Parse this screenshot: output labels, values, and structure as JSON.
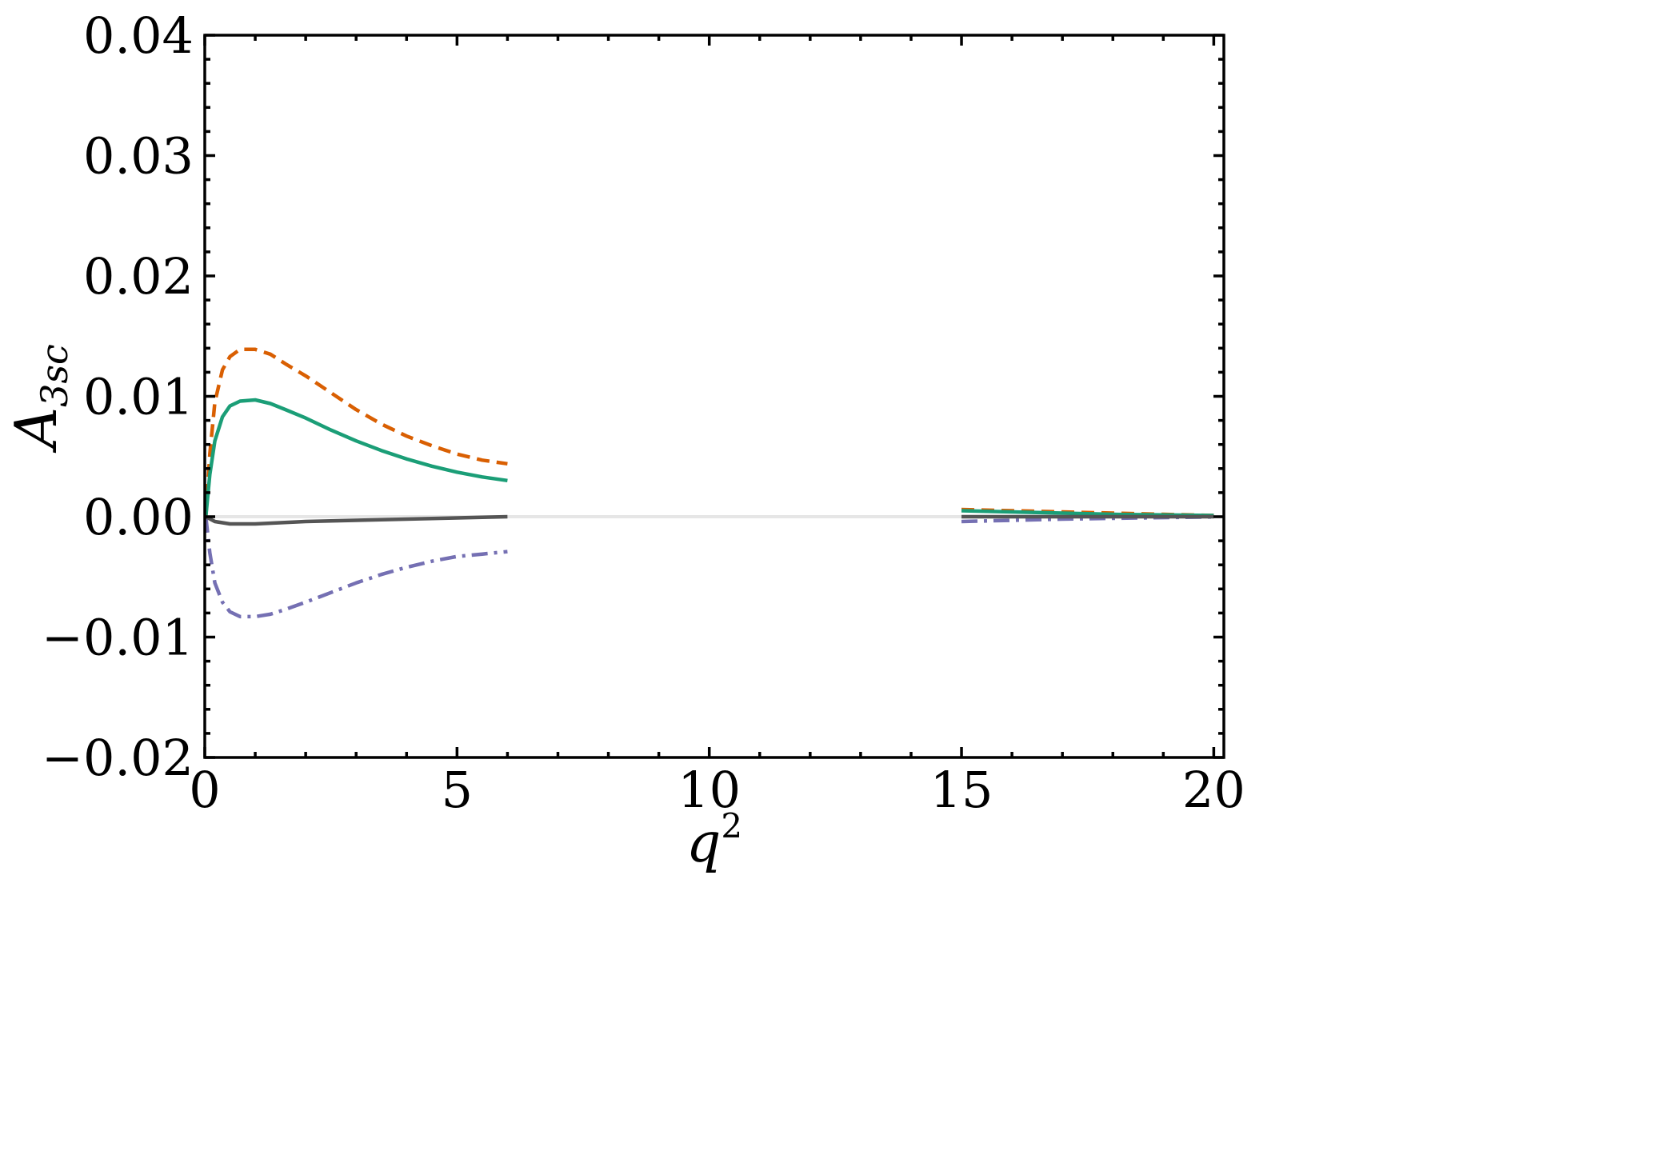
{
  "chart_data": {
    "type": "line",
    "xlabel_base": "q",
    "xlabel_sup": "2",
    "ylabel_base": "A",
    "ylabel_sub": "3sc",
    "xlim": [
      0,
      20.2
    ],
    "ylim": [
      -0.02,
      0.04
    ],
    "x_ticks": [
      0,
      5,
      10,
      15,
      20
    ],
    "x_tick_labels": [
      "0",
      "5",
      "10",
      "15",
      "20"
    ],
    "y_ticks": [
      -0.02,
      -0.01,
      0.0,
      0.01,
      0.02,
      0.03,
      0.04
    ],
    "y_tick_labels": [
      "−0.02",
      "−0.01",
      "0.00",
      "0.01",
      "0.02",
      "0.03",
      "0.04"
    ],
    "x_minor_step": 1,
    "y_minor_step": 0.002,
    "grid": false,
    "legend": "none",
    "baseline": {
      "x": [
        0,
        20.2
      ],
      "y": 0,
      "color": "#e6e6e6"
    },
    "series": [
      {
        "color": "#d95f02",
        "style": "dashed",
        "segments": [
          {
            "x": [
              0.02,
              0.1,
              0.2,
              0.35,
              0.5,
              0.7,
              1.0,
              1.3,
              1.6,
              2.0,
              2.5,
              3.0,
              3.5,
              4.0,
              4.5,
              5.0,
              5.5,
              6.0
            ],
            "y": [
              0.0,
              0.0052,
              0.0095,
              0.0122,
              0.0133,
              0.0139,
              0.0139,
              0.0135,
              0.0127,
              0.0117,
              0.0103,
              0.0089,
              0.0077,
              0.0067,
              0.0059,
              0.0052,
              0.0047,
              0.0044
            ]
          },
          {
            "x": [
              15.0,
              16.0,
              17.0,
              18.0,
              19.0,
              20.0
            ],
            "y": [
              0.0006,
              0.0005,
              0.0004,
              0.0003,
              0.0002,
              0.0001
            ]
          }
        ]
      },
      {
        "color": "#1b9e77",
        "style": "solid",
        "segments": [
          {
            "x": [
              0.02,
              0.1,
              0.2,
              0.35,
              0.5,
              0.7,
              1.0,
              1.3,
              1.6,
              2.0,
              2.5,
              3.0,
              3.5,
              4.0,
              4.5,
              5.0,
              5.5,
              6.0
            ],
            "y": [
              0.0,
              0.0035,
              0.0063,
              0.0083,
              0.0092,
              0.0096,
              0.0097,
              0.0094,
              0.0089,
              0.0082,
              0.0072,
              0.0063,
              0.0055,
              0.0048,
              0.0042,
              0.0037,
              0.0033,
              0.003
            ]
          },
          {
            "x": [
              15.0,
              16.0,
              17.0,
              18.0,
              19.0,
              20.0
            ],
            "y": [
              0.0005,
              0.0004,
              0.0003,
              0.0002,
              0.00015,
              0.0001
            ]
          }
        ]
      },
      {
        "color": "#7570b3",
        "style": "dashdot",
        "segments": [
          {
            "x": [
              0.02,
              0.1,
              0.2,
              0.35,
              0.5,
              0.7,
              1.0,
              1.3,
              1.6,
              2.0,
              2.5,
              3.0,
              3.5,
              4.0,
              4.5,
              5.0,
              5.5,
              6.0
            ],
            "y": [
              0.0,
              -0.003,
              -0.0055,
              -0.0071,
              -0.0079,
              -0.0083,
              -0.0083,
              -0.0081,
              -0.0077,
              -0.0071,
              -0.0063,
              -0.0055,
              -0.0048,
              -0.0042,
              -0.0037,
              -0.0033,
              -0.0031,
              -0.0029
            ]
          },
          {
            "x": [
              15.0,
              16.0,
              17.0,
              18.0,
              19.0,
              20.0
            ],
            "y": [
              -0.0004,
              -0.0003,
              -0.0002,
              -0.00013,
              -7e-05,
              -2e-05
            ]
          }
        ]
      },
      {
        "color": "#555555",
        "style": "solid",
        "segments": [
          {
            "x": [
              0.02,
              0.2,
              0.5,
              1.0,
              1.5,
              2.0,
              3.0,
              4.0,
              5.0,
              6.0
            ],
            "y": [
              0.0,
              -0.0004,
              -0.0006,
              -0.0006,
              -0.0005,
              -0.0004,
              -0.0003,
              -0.0002,
              -0.0001,
              0.0
            ]
          },
          {
            "x": [
              15.0,
              20.0
            ],
            "y": [
              0.0,
              0.0
            ]
          }
        ]
      }
    ]
  }
}
